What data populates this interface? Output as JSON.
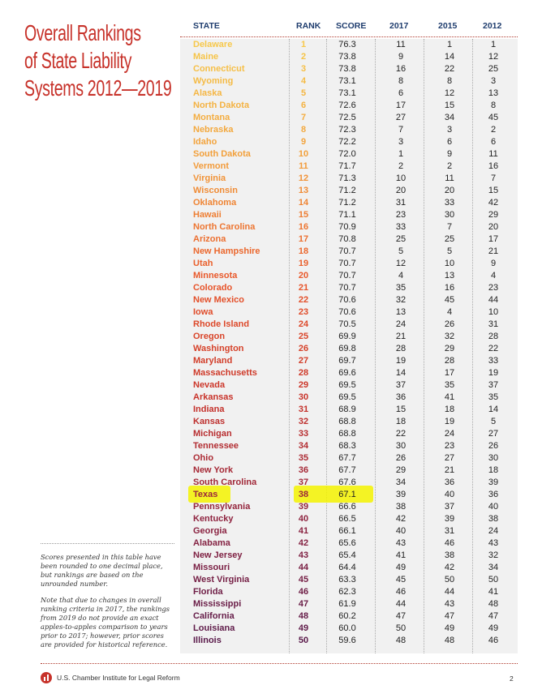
{
  "title": "Overall Rankings of State Liability Systems 2012—2019",
  "columns": [
    "STATE",
    "RANK",
    "SCORE",
    "2017",
    "2015",
    "2012"
  ],
  "rows": [
    {
      "state": "Delaware",
      "rank": "1",
      "score": "76.3",
      "y2017": "11",
      "y2015": "1",
      "y2012": "1"
    },
    {
      "state": "Maine",
      "rank": "2",
      "score": "73.8",
      "y2017": "9",
      "y2015": "14",
      "y2012": "12"
    },
    {
      "state": "Connecticut",
      "rank": "3",
      "score": "73.8",
      "y2017": "16",
      "y2015": "22",
      "y2012": "25"
    },
    {
      "state": "Wyoming",
      "rank": "4",
      "score": "73.1",
      "y2017": "8",
      "y2015": "8",
      "y2012": "3"
    },
    {
      "state": "Alaska",
      "rank": "5",
      "score": "73.1",
      "y2017": "6",
      "y2015": "12",
      "y2012": "13"
    },
    {
      "state": "North Dakota",
      "rank": "6",
      "score": "72.6",
      "y2017": "17",
      "y2015": "15",
      "y2012": "8"
    },
    {
      "state": "Montana",
      "rank": "7",
      "score": "72.5",
      "y2017": "27",
      "y2015": "34",
      "y2012": "45"
    },
    {
      "state": "Nebraska",
      "rank": "8",
      "score": "72.3",
      "y2017": "7",
      "y2015": "3",
      "y2012": "2"
    },
    {
      "state": "Idaho",
      "rank": "9",
      "score": "72.2",
      "y2017": "3",
      "y2015": "6",
      "y2012": "6"
    },
    {
      "state": "South Dakota",
      "rank": "10",
      "score": "72.0",
      "y2017": "1",
      "y2015": "9",
      "y2012": "11"
    },
    {
      "state": "Vermont",
      "rank": "11",
      "score": "71.7",
      "y2017": "2",
      "y2015": "2",
      "y2012": "16"
    },
    {
      "state": "Virginia",
      "rank": "12",
      "score": "71.3",
      "y2017": "10",
      "y2015": "11",
      "y2012": "7"
    },
    {
      "state": "Wisconsin",
      "rank": "13",
      "score": "71.2",
      "y2017": "20",
      "y2015": "20",
      "y2012": "15"
    },
    {
      "state": "Oklahoma",
      "rank": "14",
      "score": "71.2",
      "y2017": "31",
      "y2015": "33",
      "y2012": "42"
    },
    {
      "state": "Hawaii",
      "rank": "15",
      "score": "71.1",
      "y2017": "23",
      "y2015": "30",
      "y2012": "29"
    },
    {
      "state": "North Carolina",
      "rank": "16",
      "score": "70.9",
      "y2017": "33",
      "y2015": "7",
      "y2012": "20"
    },
    {
      "state": "Arizona",
      "rank": "17",
      "score": "70.8",
      "y2017": "25",
      "y2015": "25",
      "y2012": "17"
    },
    {
      "state": "New Hampshire",
      "rank": "18",
      "score": "70.7",
      "y2017": "5",
      "y2015": "5",
      "y2012": "21"
    },
    {
      "state": "Utah",
      "rank": "19",
      "score": "70.7",
      "y2017": "12",
      "y2015": "10",
      "y2012": "9"
    },
    {
      "state": "Minnesota",
      "rank": "20",
      "score": "70.7",
      "y2017": "4",
      "y2015": "13",
      "y2012": "4"
    },
    {
      "state": "Colorado",
      "rank": "21",
      "score": "70.7",
      "y2017": "35",
      "y2015": "16",
      "y2012": "23"
    },
    {
      "state": "New Mexico",
      "rank": "22",
      "score": "70.6",
      "y2017": "32",
      "y2015": "45",
      "y2012": "44"
    },
    {
      "state": "Iowa",
      "rank": "23",
      "score": "70.6",
      "y2017": "13",
      "y2015": "4",
      "y2012": "10"
    },
    {
      "state": "Rhode Island",
      "rank": "24",
      "score": "70.5",
      "y2017": "24",
      "y2015": "26",
      "y2012": "31"
    },
    {
      "state": "Oregon",
      "rank": "25",
      "score": "69.9",
      "y2017": "21",
      "y2015": "32",
      "y2012": "28"
    },
    {
      "state": "Washington",
      "rank": "26",
      "score": "69.8",
      "y2017": "28",
      "y2015": "29",
      "y2012": "22"
    },
    {
      "state": "Maryland",
      "rank": "27",
      "score": "69.7",
      "y2017": "19",
      "y2015": "28",
      "y2012": "33"
    },
    {
      "state": "Massachusetts",
      "rank": "28",
      "score": "69.6",
      "y2017": "14",
      "y2015": "17",
      "y2012": "19"
    },
    {
      "state": "Nevada",
      "rank": "29",
      "score": "69.5",
      "y2017": "37",
      "y2015": "35",
      "y2012": "37"
    },
    {
      "state": "Arkansas",
      "rank": "30",
      "score": "69.5",
      "y2017": "36",
      "y2015": "41",
      "y2012": "35"
    },
    {
      "state": "Indiana",
      "rank": "31",
      "score": "68.9",
      "y2017": "15",
      "y2015": "18",
      "y2012": "14"
    },
    {
      "state": "Kansas",
      "rank": "32",
      "score": "68.8",
      "y2017": "18",
      "y2015": "19",
      "y2012": "5"
    },
    {
      "state": "Michigan",
      "rank": "33",
      "score": "68.8",
      "y2017": "22",
      "y2015": "24",
      "y2012": "27"
    },
    {
      "state": "Tennessee",
      "rank": "34",
      "score": "68.3",
      "y2017": "30",
      "y2015": "23",
      "y2012": "26"
    },
    {
      "state": "Ohio",
      "rank": "35",
      "score": "67.7",
      "y2017": "26",
      "y2015": "27",
      "y2012": "30"
    },
    {
      "state": "New York",
      "rank": "36",
      "score": "67.7",
      "y2017": "29",
      "y2015": "21",
      "y2012": "18"
    },
    {
      "state": "South Carolina",
      "rank": "37",
      "score": "67.6",
      "y2017": "34",
      "y2015": "36",
      "y2012": "39"
    },
    {
      "state": "Texas",
      "rank": "38",
      "score": "67.1",
      "y2017": "39",
      "y2015": "40",
      "y2012": "36"
    },
    {
      "state": "Pennsylvania",
      "rank": "39",
      "score": "66.6",
      "y2017": "38",
      "y2015": "37",
      "y2012": "40"
    },
    {
      "state": "Kentucky",
      "rank": "40",
      "score": "66.5",
      "y2017": "42",
      "y2015": "39",
      "y2012": "38"
    },
    {
      "state": "Georgia",
      "rank": "41",
      "score": "66.1",
      "y2017": "40",
      "y2015": "31",
      "y2012": "24"
    },
    {
      "state": "Alabama",
      "rank": "42",
      "score": "65.6",
      "y2017": "43",
      "y2015": "46",
      "y2012": "43"
    },
    {
      "state": "New Jersey",
      "rank": "43",
      "score": "65.4",
      "y2017": "41",
      "y2015": "38",
      "y2012": "32"
    },
    {
      "state": "Missouri",
      "rank": "44",
      "score": "64.4",
      "y2017": "49",
      "y2015": "42",
      "y2012": "34"
    },
    {
      "state": "West Virginia",
      "rank": "45",
      "score": "63.3",
      "y2017": "45",
      "y2015": "50",
      "y2012": "50"
    },
    {
      "state": "Florida",
      "rank": "46",
      "score": "62.3",
      "y2017": "46",
      "y2015": "44",
      "y2012": "41"
    },
    {
      "state": "Mississippi",
      "rank": "47",
      "score": "61.9",
      "y2017": "44",
      "y2015": "43",
      "y2012": "48"
    },
    {
      "state": "California",
      "rank": "48",
      "score": "60.2",
      "y2017": "47",
      "y2015": "47",
      "y2012": "47"
    },
    {
      "state": "Louisiana",
      "rank": "49",
      "score": "60.0",
      "y2017": "50",
      "y2015": "49",
      "y2012": "49"
    },
    {
      "state": "Illinois",
      "rank": "50",
      "score": "59.6",
      "y2017": "48",
      "y2015": "48",
      "y2012": "46"
    }
  ],
  "highlighted_state": "Texas",
  "notes": [
    "Scores presented in this table have been rounded to one decimal place, but rankings are based on the unrounded number.",
    "Note that due to changes in overall ranking criteria in 2017, the rankings from 2019 do not provide an exact apples-to-apples comparison to years prior to 2017; however, prior scores are provided for historical reference."
  ],
  "footer": {
    "organization": "U.S. Chamber Institute for Legal Reform",
    "page_number": "2"
  },
  "colors": {
    "title": "#c7322a",
    "header": "#1f3d6e",
    "highlight": "#f5f300",
    "gradient_stops": [
      "#f7c84a",
      "#f29c3a",
      "#e8552a",
      "#c7322a",
      "#8e2440",
      "#5a1a4a"
    ]
  }
}
